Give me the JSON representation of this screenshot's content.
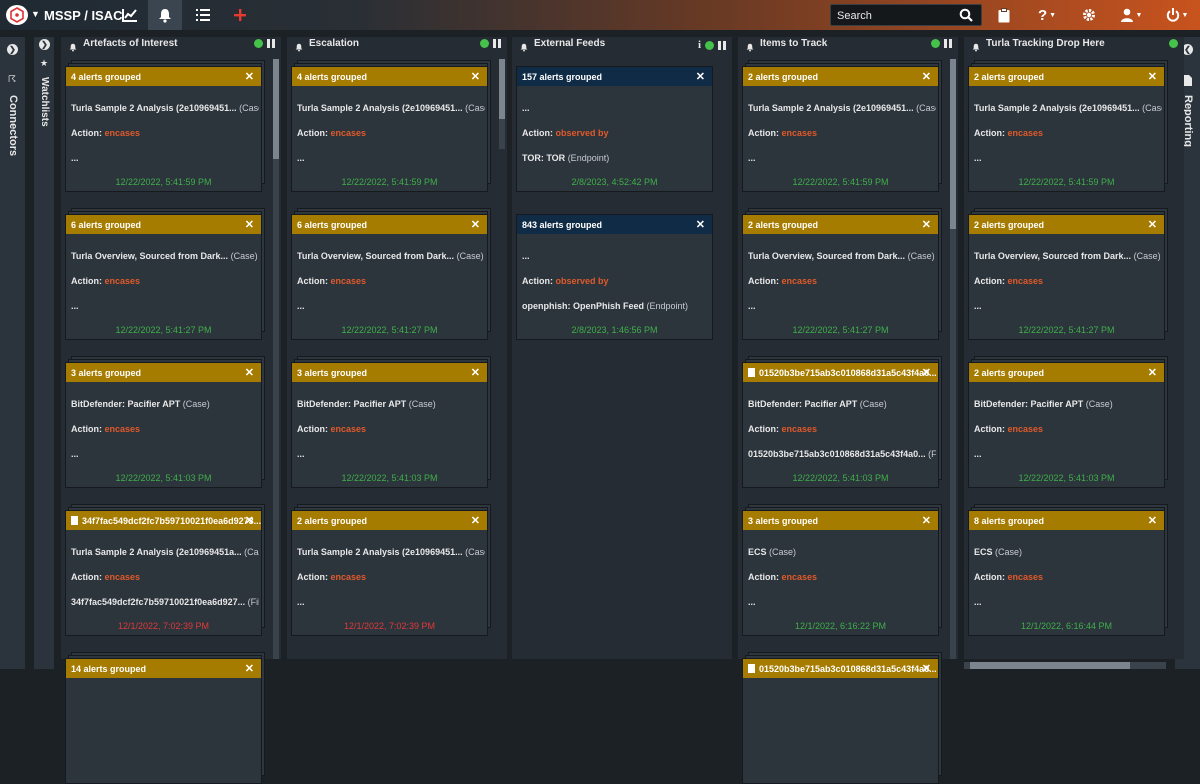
{
  "header": {
    "brand": "MSSP / ISAC",
    "search_placeholder": "Search",
    "icons": [
      "logo-icon",
      "chart-icon",
      "bell-icon",
      "list-icon",
      "plus-icon",
      "search-icon",
      "clipboard-icon",
      "help-icon",
      "gear-icon",
      "user-icon",
      "power-icon"
    ],
    "plus_color": "#e43b2e"
  },
  "left_sidebar": {
    "connectors_label": "Connectors",
    "watchlists_label": "Watchlists"
  },
  "right_sidebar": {
    "reporting_label": "Reporting"
  },
  "colors": {
    "group_bar": "#a67c00",
    "feed_bar": "#102b45",
    "action": "#e05a2a",
    "time_ok": "#3fb04a",
    "time_old": "#e03a3a",
    "status_ok": "#44c24a"
  },
  "columns": [
    {
      "title": "Artefacts of Interest",
      "cards": [
        {
          "bar": "4 alerts grouped",
          "line1": "Turla Sample 2 Analysis (2e10969451...",
          "line1_sub": "(Case)",
          "action_label": "Action:",
          "action": "encases",
          "line3": "...",
          "time": "12/22/2022, 5:41:59 PM"
        },
        {
          "bar": "6 alerts grouped",
          "line1": "Turla Overview, Sourced from Dark...",
          "line1_sub": "(Case)",
          "action_label": "Action:",
          "action": "encases",
          "line3": "...",
          "time": "12/22/2022, 5:41:27 PM"
        },
        {
          "bar": "3 alerts grouped",
          "line1": "BitDefender: Pacifier APT",
          "line1_sub": "(Case)",
          "action_label": "Action:",
          "action": "encases",
          "line3": "...",
          "time": "12/22/2022, 5:41:03 PM"
        },
        {
          "bar": "34f7fac549dcf2fc7b59710021f0ea6d9273...",
          "line1": "Turla Sample 2 Analysis (2e10969451a...",
          "line1_sub": "(Case)",
          "action_label": "Action:",
          "action": "encases",
          "line3": "34f7fac549dcf2fc7b59710021f0ea6d927...",
          "line3_sub": "(File)",
          "time": "12/1/2022, 7:02:39 PM"
        },
        {
          "bar": "14 alerts grouped"
        }
      ]
    },
    {
      "title": "Escalation",
      "cards": [
        {
          "bar": "4 alerts grouped",
          "line1": "Turla Sample 2 Analysis (2e10969451...",
          "line1_sub": "(Case)",
          "action_label": "Action:",
          "action": "encases",
          "line3": "...",
          "time": "12/22/2022, 5:41:59 PM"
        },
        {
          "bar": "6 alerts grouped",
          "line1": "Turla Overview, Sourced from Dark...",
          "line1_sub": "(Case)",
          "action_label": "Action:",
          "action": "encases",
          "line3": "...",
          "time": "12/22/2022, 5:41:27 PM"
        },
        {
          "bar": "3 alerts grouped",
          "line1": "BitDefender: Pacifier APT",
          "line1_sub": "(Case)",
          "action_label": "Action:",
          "action": "encases",
          "line3": "...",
          "time": "12/22/2022, 5:41:03 PM"
        },
        {
          "bar": "2 alerts grouped",
          "line1": "Turla Sample 2 Analysis (2e10969451...",
          "line1_sub": "(Case)",
          "action_label": "Action:",
          "action": "encases",
          "line3": "...",
          "time": "12/1/2022, 7:02:39 PM"
        }
      ]
    },
    {
      "title": "External Feeds",
      "cards": [
        {
          "bar": "157 alerts grouped",
          "line1": "...",
          "action_label": "Action:",
          "action": "observed by",
          "line3": "TOR: TOR",
          "line3_sub": "(Endpoint)",
          "time": "2/8/2023, 4:52:42 PM"
        },
        {
          "bar": "843 alerts grouped",
          "line1": "...",
          "action_label": "Action:",
          "action": "observed by",
          "line3": "openphish: OpenPhish Feed",
          "line3_sub": "(Endpoint)",
          "time": "2/8/2023, 1:46:56 PM"
        }
      ]
    },
    {
      "title": "Items to Track",
      "cards": [
        {
          "bar": "2 alerts grouped",
          "line1": "Turla Sample 2 Analysis (2e10969451...",
          "line1_sub": "(Case)",
          "action_label": "Action:",
          "action": "encases",
          "line3": "...",
          "time": "12/22/2022, 5:41:59 PM"
        },
        {
          "bar": "2 alerts grouped",
          "line1": "Turla Overview, Sourced from Dark...",
          "line1_sub": "(Case)",
          "action_label": "Action:",
          "action": "encases",
          "line3": "...",
          "time": "12/22/2022, 5:41:27 PM"
        },
        {
          "bar": "01520b3be715ab3c010868d31a5c43f4a0...",
          "line1": "BitDefender: Pacifier APT",
          "line1_sub": "(Case)",
          "action_label": "Action:",
          "action": "encases",
          "line3": "01520b3be715ab3c010868d31a5c43f4a0...",
          "line3_sub": "(File)",
          "time": "12/22/2022, 5:41:03 PM"
        },
        {
          "bar": "3 alerts grouped",
          "line1": "ECS",
          "line1_sub": "(Case)",
          "action_label": "Action:",
          "action": "encases",
          "line3": "...",
          "time": "12/1/2022, 6:16:22 PM"
        },
        {
          "bar": "01520b3be715ab3c010868d31a5c43f4a0..."
        }
      ]
    },
    {
      "title": "Turla Tracking Drop Here",
      "cards": [
        {
          "bar": "2 alerts grouped",
          "line1": "Turla Sample 2 Analysis (2e10969451...",
          "line1_sub": "(Case)",
          "action_label": "Action:",
          "action": "encases",
          "line3": "...",
          "time": "12/22/2022, 5:41:59 PM"
        },
        {
          "bar": "2 alerts grouped",
          "line1": "Turla Overview, Sourced from Dark...",
          "line1_sub": "(Case)",
          "action_label": "Action:",
          "action": "encases",
          "line3": "...",
          "time": "12/22/2022, 5:41:27 PM"
        },
        {
          "bar": "2 alerts grouped",
          "line1": "BitDefender: Pacifier APT",
          "line1_sub": "(Case)",
          "action_label": "Action:",
          "action": "encases",
          "line3": "...",
          "time": "12/22/2022, 5:41:03 PM"
        },
        {
          "bar": "8 alerts grouped",
          "line1": "ECS",
          "line1_sub": "(Case)",
          "action_label": "Action:",
          "action": "encases",
          "line3": "...",
          "time": "12/1/2022, 6:16:44 PM"
        }
      ]
    }
  ]
}
